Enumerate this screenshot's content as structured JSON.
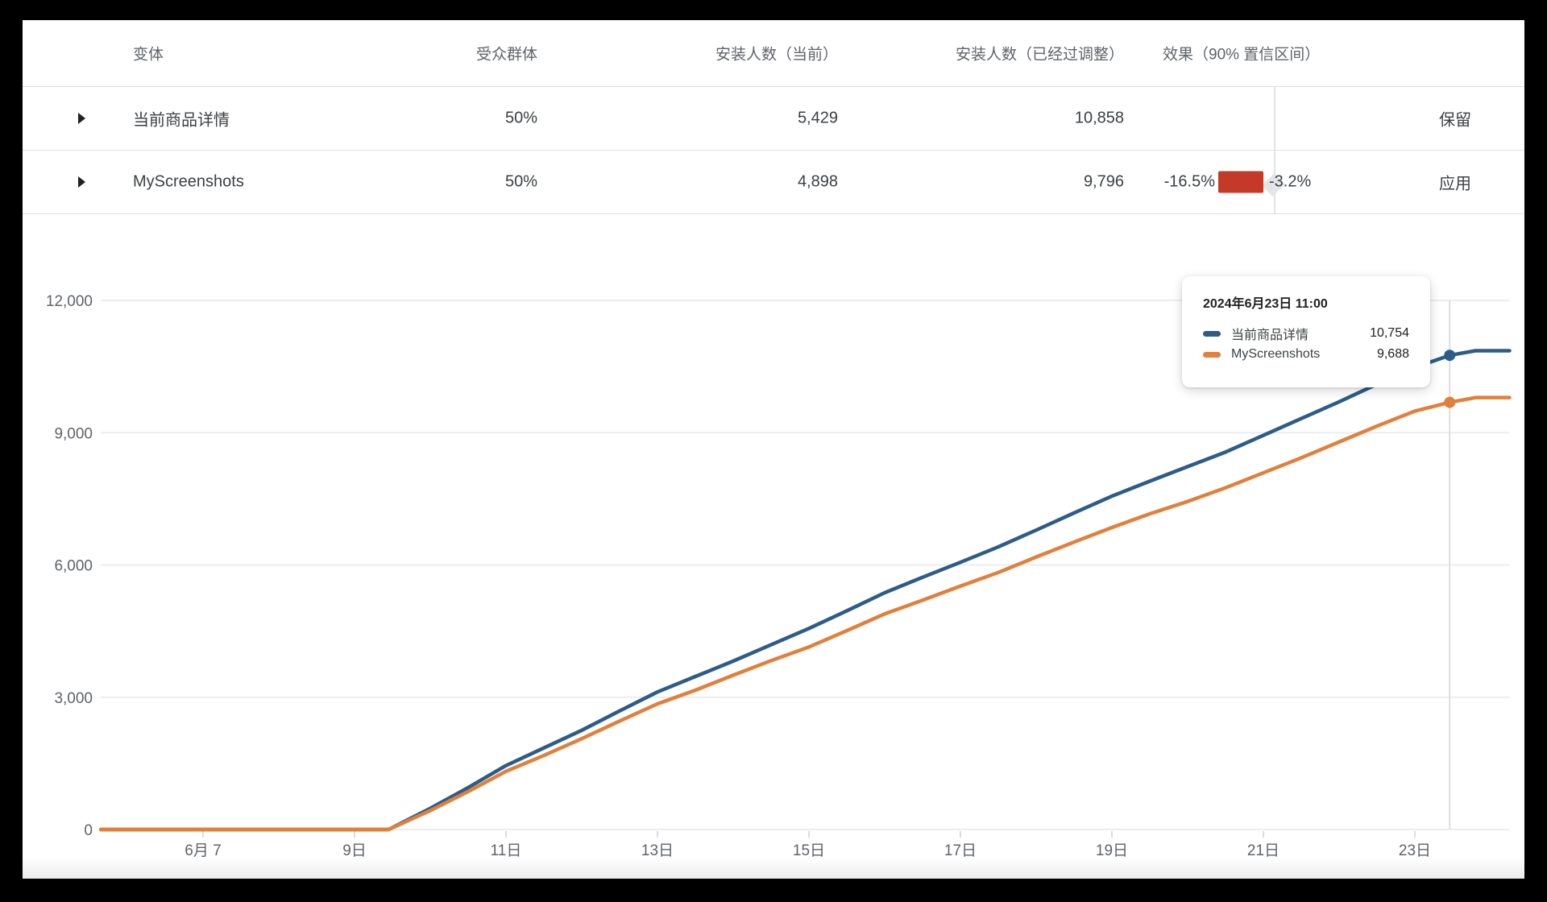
{
  "table": {
    "columns": {
      "variant": "变体",
      "audience": "受众群体",
      "installers_current": "安装人数（当前）",
      "installers_adjusted": "安装人数（已经过调整）",
      "effect": "效果（90% 置信区间）"
    },
    "rows": [
      {
        "variant": "当前商品详情",
        "audience": "50%",
        "installers_current": "5,429",
        "installers_adjusted": "10,858",
        "effect_marker": "baseline-diamond",
        "action": "保留"
      },
      {
        "variant": "MyScreenshots",
        "audience": "50%",
        "installers_current": "4,898",
        "installers_adjusted": "9,796",
        "effect_low": "-16.5%",
        "effect_high": "-3.2%",
        "action": "应用"
      }
    ]
  },
  "tooltip": {
    "title": "2024年6月23日 11:00",
    "rows": [
      {
        "label": "当前商品详情",
        "value": "10,754",
        "color": "#2d5c88"
      },
      {
        "label": "MyScreenshots",
        "value": "9,688",
        "color": "#e0803c"
      }
    ]
  },
  "colors": {
    "control_line": "#2d5c88",
    "variant_line": "#e0803c",
    "negative_bar": "#c53929",
    "diamond": "#e3e5e9",
    "gridline": "#ecedf0",
    "crosshair": "#dcdee1"
  },
  "chart_data": {
    "type": "line",
    "title": "",
    "xlabel": "",
    "ylabel": "",
    "x_axis": {
      "unit": "day of June 2024",
      "range": [
        5.65,
        24.25
      ],
      "ticks": [
        {
          "day": 7,
          "label": "6月 7"
        },
        {
          "day": 9,
          "label": "9日"
        },
        {
          "day": 11,
          "label": "11日"
        },
        {
          "day": 13,
          "label": "13日"
        },
        {
          "day": 15,
          "label": "15日"
        },
        {
          "day": 17,
          "label": "17日"
        },
        {
          "day": 19,
          "label": "19日"
        },
        {
          "day": 21,
          "label": "21日"
        },
        {
          "day": 23,
          "label": "23日"
        }
      ]
    },
    "y_axis": {
      "min": 0,
      "max": 12000,
      "ticks": [
        0,
        3000,
        6000,
        9000,
        12000
      ],
      "tick_labels": [
        "0",
        "3,000",
        "6,000",
        "9,000",
        "12,000"
      ],
      "grid": "horizontal-only"
    },
    "legend_position": "tooltip-only",
    "series": [
      {
        "name": "当前商品详情",
        "color": "#2d5c88",
        "points": [
          [
            5.65,
            0
          ],
          [
            7,
            0
          ],
          [
            8,
            0
          ],
          [
            9,
            0
          ],
          [
            9.45,
            0
          ],
          [
            10,
            480
          ],
          [
            10.5,
            950
          ],
          [
            11,
            1450
          ],
          [
            11.5,
            1850
          ],
          [
            12,
            2250
          ],
          [
            12.5,
            2690
          ],
          [
            13,
            3120
          ],
          [
            13.5,
            3470
          ],
          [
            14,
            3820
          ],
          [
            14.5,
            4190
          ],
          [
            15,
            4560
          ],
          [
            15.5,
            4960
          ],
          [
            16,
            5370
          ],
          [
            16.5,
            5720
          ],
          [
            17,
            6060
          ],
          [
            17.5,
            6410
          ],
          [
            18,
            6790
          ],
          [
            18.5,
            7180
          ],
          [
            19,
            7560
          ],
          [
            19.5,
            7900
          ],
          [
            20,
            8230
          ],
          [
            20.5,
            8560
          ],
          [
            21,
            8940
          ],
          [
            21.5,
            9320
          ],
          [
            22,
            9700
          ],
          [
            22.5,
            10100
          ],
          [
            23,
            10480
          ],
          [
            23.46,
            10754
          ],
          [
            23.8,
            10858
          ],
          [
            24.25,
            10858
          ]
        ]
      },
      {
        "name": "MyScreenshots",
        "color": "#e0803c",
        "points": [
          [
            5.65,
            0
          ],
          [
            7,
            0
          ],
          [
            8,
            0
          ],
          [
            9,
            0
          ],
          [
            9.45,
            0
          ],
          [
            10,
            430
          ],
          [
            10.5,
            860
          ],
          [
            11,
            1320
          ],
          [
            11.5,
            1680
          ],
          [
            12,
            2060
          ],
          [
            12.5,
            2460
          ],
          [
            13,
            2850
          ],
          [
            13.5,
            3160
          ],
          [
            14,
            3500
          ],
          [
            14.5,
            3830
          ],
          [
            15,
            4140
          ],
          [
            15.5,
            4510
          ],
          [
            16,
            4890
          ],
          [
            16.5,
            5200
          ],
          [
            17,
            5520
          ],
          [
            17.5,
            5830
          ],
          [
            18,
            6180
          ],
          [
            18.5,
            6520
          ],
          [
            19,
            6850
          ],
          [
            19.5,
            7160
          ],
          [
            20,
            7440
          ],
          [
            20.5,
            7750
          ],
          [
            21,
            8090
          ],
          [
            21.5,
            8430
          ],
          [
            22,
            8790
          ],
          [
            22.5,
            9150
          ],
          [
            23,
            9490
          ],
          [
            23.46,
            9688
          ],
          [
            23.8,
            9796
          ],
          [
            24.25,
            9796
          ]
        ]
      }
    ],
    "hover": {
      "day": 23.46,
      "time_label": "2024年6月23日 11:00",
      "values": [
        {
          "series": "当前商品详情",
          "value": 10754
        },
        {
          "series": "MyScreenshots",
          "value": 9688
        }
      ]
    }
  }
}
